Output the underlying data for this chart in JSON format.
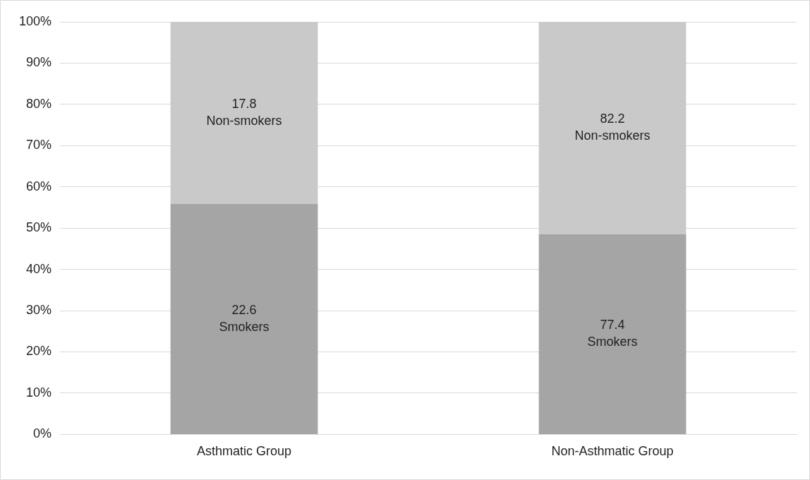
{
  "chart_data": {
    "type": "bar",
    "stacked": true,
    "categories": [
      "Asthmatic Group",
      "Non-Asthmatic Group"
    ],
    "series": [
      {
        "name": "Smokers",
        "color": "#a5a5a5",
        "values": [
          55.9,
          48.5
        ]
      },
      {
        "name": "Non-smokers",
        "color": "#c9c9c9",
        "values": [
          44.1,
          51.5
        ]
      }
    ],
    "annotations": [
      "22.6",
      "77.4",
      "17.8",
      "82.2"
    ],
    "ylim": [
      0,
      100
    ],
    "yticks": [
      {
        "value": 0,
        "label": "0%"
      },
      {
        "value": 10,
        "label": "10%"
      },
      {
        "value": 20,
        "label": "20%"
      },
      {
        "value": 30,
        "label": "30%"
      },
      {
        "value": 40,
        "label": "40%"
      },
      {
        "value": 50,
        "label": "50%"
      },
      {
        "value": 60,
        "label": "60%"
      },
      {
        "value": 70,
        "label": "70%"
      },
      {
        "value": 80,
        "label": "80%"
      },
      {
        "value": 90,
        "label": "90%"
      },
      {
        "value": 100,
        "label": "100%"
      }
    ],
    "grid": "y",
    "legend": false
  }
}
